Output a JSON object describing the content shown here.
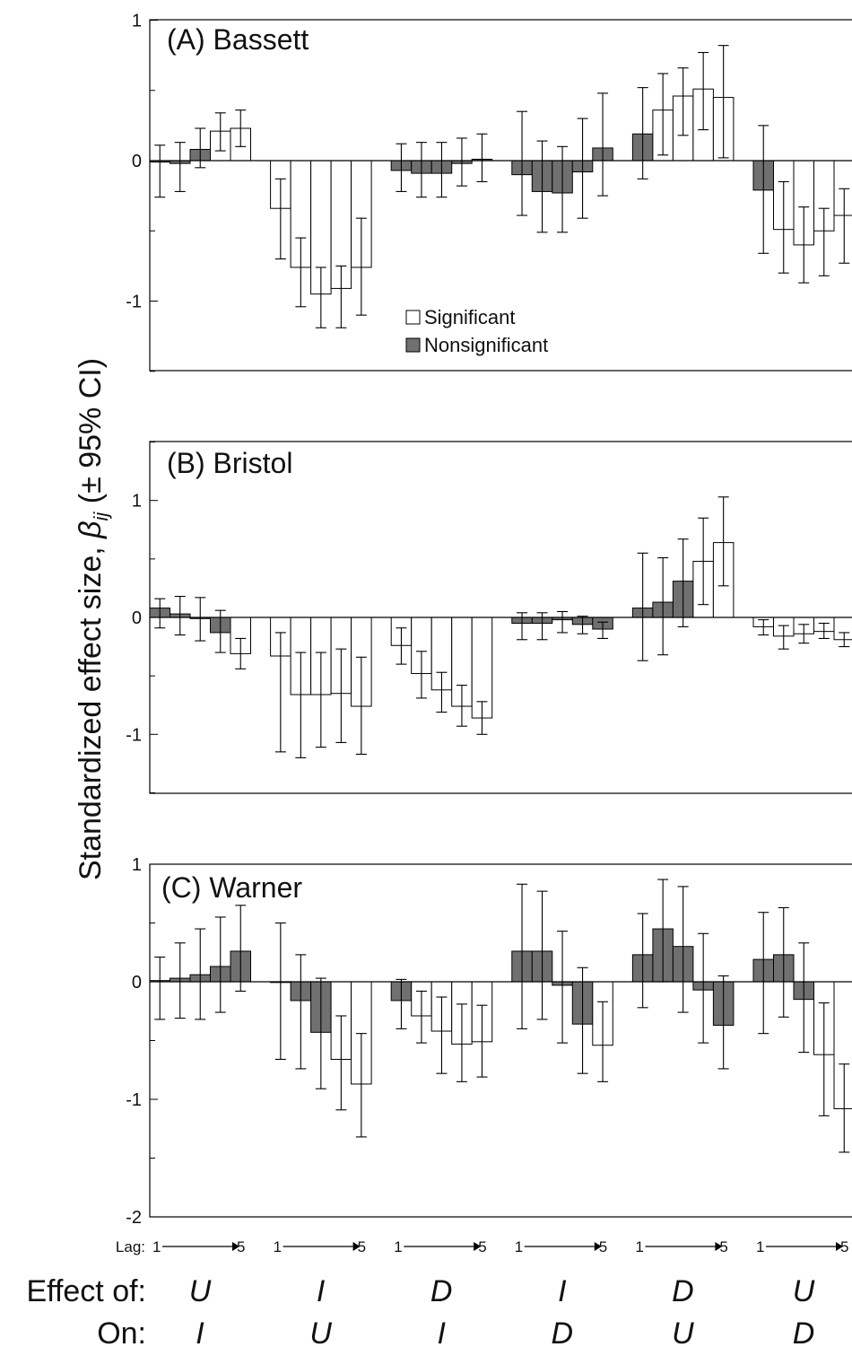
{
  "ylabel": {
    "prefix": "Standardized effect size, ",
    "beta": "β",
    "subscript": "ij",
    "suffix": " (± 95% CI)"
  },
  "legend": {
    "significant": "Significant",
    "nonsignificant": "Nonsignificant"
  },
  "lag_label": "Lag:",
  "lag_start": "1",
  "lag_end": "5",
  "effect_of_label": "Effect of:",
  "on_label": "On:",
  "groups": [
    {
      "effect_of": "U",
      "on": "I"
    },
    {
      "effect_of": "I",
      "on": "U"
    },
    {
      "effect_of": "D",
      "on": "I"
    },
    {
      "effect_of": "I",
      "on": "D"
    },
    {
      "effect_of": "D",
      "on": "U"
    },
    {
      "effect_of": "U",
      "on": "D"
    }
  ],
  "colors": {
    "significant": "#ffffff",
    "nonsignificant": "#707070",
    "stroke": "#000000"
  },
  "chart_data": [
    {
      "type": "bar",
      "title": "(A) Bassett",
      "ylim": [
        -1.5,
        1
      ],
      "yticks": [
        1,
        0,
        -1
      ],
      "show_legend": true,
      "groups": [
        {
          "values": [
            -0.01,
            -0.02,
            0.08,
            0.21,
            0.23
          ],
          "lower": [
            -0.26,
            -0.22,
            -0.05,
            0.07,
            0.1
          ],
          "upper": [
            0.11,
            0.13,
            0.23,
            0.34,
            0.36
          ],
          "significant": [
            false,
            false,
            false,
            true,
            true
          ]
        },
        {
          "values": [
            -0.34,
            -0.76,
            -0.95,
            -0.91,
            -0.76
          ],
          "lower": [
            -0.7,
            -1.04,
            -1.19,
            -1.19,
            -1.1
          ],
          "upper": [
            -0.13,
            -0.55,
            -0.76,
            -0.75,
            -0.41
          ],
          "significant": [
            true,
            true,
            true,
            true,
            true
          ]
        },
        {
          "values": [
            -0.07,
            -0.09,
            -0.09,
            -0.02,
            0.01
          ],
          "lower": [
            -0.22,
            -0.26,
            -0.26,
            -0.18,
            -0.15
          ],
          "upper": [
            0.12,
            0.13,
            0.13,
            0.16,
            0.19
          ],
          "significant": [
            false,
            false,
            false,
            false,
            false
          ]
        },
        {
          "values": [
            -0.1,
            -0.22,
            -0.23,
            -0.08,
            0.09
          ],
          "lower": [
            -0.39,
            -0.51,
            -0.51,
            -0.41,
            -0.25
          ],
          "upper": [
            0.35,
            0.14,
            0.1,
            0.3,
            0.48
          ],
          "significant": [
            false,
            false,
            false,
            false,
            false
          ]
        },
        {
          "values": [
            0.19,
            0.36,
            0.46,
            0.51,
            0.45
          ],
          "lower": [
            -0.13,
            0.04,
            0.18,
            0.22,
            0.02
          ],
          "upper": [
            0.52,
            0.62,
            0.66,
            0.77,
            0.82
          ],
          "significant": [
            false,
            true,
            true,
            true,
            true
          ]
        },
        {
          "values": [
            -0.21,
            -0.49,
            -0.6,
            -0.5,
            -0.39
          ],
          "lower": [
            -0.66,
            -0.8,
            -0.87,
            -0.82,
            -0.73
          ],
          "upper": [
            0.25,
            -0.15,
            -0.33,
            -0.34,
            -0.2
          ],
          "significant": [
            false,
            true,
            true,
            true,
            true
          ]
        }
      ]
    },
    {
      "type": "bar",
      "title": "(B) Bristol",
      "ylim": [
        -1.5,
        1.5
      ],
      "yticks": [
        1,
        0,
        -1
      ],
      "show_legend": false,
      "groups": [
        {
          "values": [
            0.08,
            0.03,
            -0.01,
            -0.13,
            -0.31
          ],
          "lower": [
            -0.09,
            -0.15,
            -0.2,
            -0.3,
            -0.44
          ],
          "upper": [
            0.16,
            0.18,
            0.17,
            0.06,
            -0.18
          ],
          "significant": [
            false,
            false,
            false,
            false,
            true
          ]
        },
        {
          "values": [
            -0.33,
            -0.66,
            -0.66,
            -0.65,
            -0.76
          ],
          "lower": [
            -1.15,
            -1.2,
            -1.11,
            -1.07,
            -1.17
          ],
          "upper": [
            -0.13,
            -0.3,
            -0.3,
            -0.27,
            -0.34
          ],
          "significant": [
            true,
            true,
            true,
            true,
            true
          ]
        },
        {
          "values": [
            -0.24,
            -0.48,
            -0.62,
            -0.76,
            -0.86
          ],
          "lower": [
            -0.4,
            -0.69,
            -0.81,
            -0.93,
            -1.0
          ],
          "upper": [
            -0.09,
            -0.29,
            -0.47,
            -0.58,
            -0.72
          ],
          "significant": [
            true,
            true,
            true,
            true,
            true
          ]
        },
        {
          "values": [
            -0.05,
            -0.05,
            -0.02,
            -0.06,
            -0.1
          ],
          "lower": [
            -0.19,
            -0.19,
            -0.13,
            -0.14,
            -0.18
          ],
          "upper": [
            0.04,
            0.04,
            0.05,
            0.01,
            -0.04
          ],
          "significant": [
            false,
            false,
            false,
            false,
            false
          ]
        },
        {
          "values": [
            0.08,
            0.13,
            0.31,
            0.48,
            0.64
          ],
          "lower": [
            -0.37,
            -0.32,
            -0.08,
            0.11,
            0.27
          ],
          "upper": [
            0.55,
            0.51,
            0.67,
            0.85,
            1.03
          ],
          "significant": [
            false,
            false,
            false,
            true,
            true
          ]
        },
        {
          "values": [
            -0.08,
            -0.16,
            -0.14,
            -0.12,
            -0.19
          ],
          "lower": [
            -0.15,
            -0.27,
            -0.22,
            -0.18,
            -0.25
          ],
          "upper": [
            -0.02,
            -0.07,
            -0.06,
            -0.05,
            -0.13
          ],
          "significant": [
            true,
            true,
            true,
            true,
            true
          ]
        }
      ]
    },
    {
      "type": "bar",
      "title": "(C) Warner",
      "ylim": [
        -2,
        1
      ],
      "yticks": [
        1,
        0,
        -1,
        -2
      ],
      "show_legend": false,
      "groups": [
        {
          "values": [
            0.01,
            0.03,
            0.06,
            0.13,
            0.26
          ],
          "lower": [
            -0.32,
            -0.31,
            -0.32,
            -0.26,
            -0.08
          ],
          "upper": [
            0.21,
            0.33,
            0.45,
            0.55,
            0.65
          ],
          "significant": [
            false,
            false,
            false,
            false,
            false
          ]
        },
        {
          "values": [
            0.0,
            -0.16,
            -0.43,
            -0.66,
            -0.87
          ],
          "lower": [
            -0.66,
            -0.74,
            -0.91,
            -1.09,
            -1.32
          ],
          "upper": [
            0.5,
            0.23,
            0.03,
            -0.29,
            -0.44
          ],
          "significant": [
            false,
            false,
            false,
            true,
            true
          ]
        },
        {
          "values": [
            -0.16,
            -0.29,
            -0.42,
            -0.53,
            -0.51
          ],
          "lower": [
            -0.4,
            -0.52,
            -0.78,
            -0.85,
            -0.81
          ],
          "upper": [
            0.02,
            -0.08,
            -0.13,
            -0.19,
            -0.2
          ],
          "significant": [
            false,
            true,
            true,
            true,
            true
          ]
        },
        {
          "values": [
            0.26,
            0.26,
            -0.03,
            -0.36,
            -0.54
          ],
          "lower": [
            -0.4,
            -0.32,
            -0.52,
            -0.78,
            -0.85
          ],
          "upper": [
            0.83,
            0.77,
            0.43,
            0.12,
            -0.17
          ],
          "significant": [
            false,
            false,
            false,
            false,
            true
          ]
        },
        {
          "values": [
            0.23,
            0.45,
            0.3,
            -0.07,
            -0.37
          ],
          "lower": [
            -0.22,
            0.0,
            -0.26,
            -0.52,
            -0.74
          ],
          "upper": [
            0.58,
            0.87,
            0.81,
            0.41,
            0.05
          ],
          "significant": [
            false,
            false,
            false,
            false,
            false
          ]
        },
        {
          "values": [
            0.19,
            0.23,
            -0.15,
            -0.62,
            -1.08
          ],
          "lower": [
            -0.44,
            -0.3,
            -0.6,
            -1.14,
            -1.45
          ],
          "upper": [
            0.59,
            0.63,
            0.33,
            -0.18,
            -0.7
          ],
          "significant": [
            false,
            false,
            false,
            true,
            true
          ]
        }
      ]
    }
  ]
}
